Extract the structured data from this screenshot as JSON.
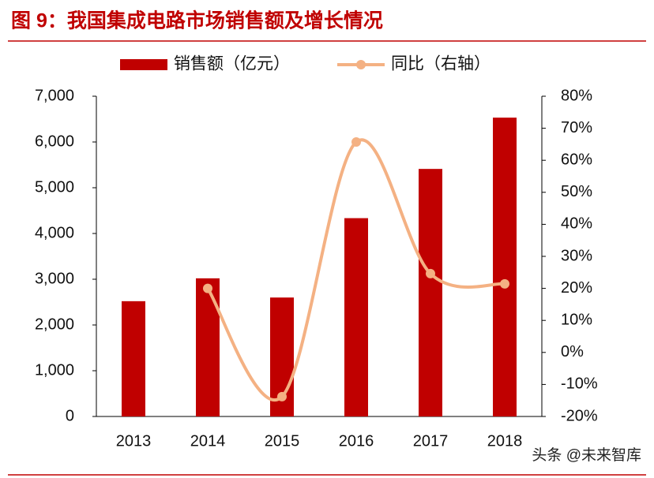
{
  "chart_data": {
    "type": "bar-line",
    "title": "图 9：我国集成电路市场销售额及增长情况",
    "categories": [
      "2013",
      "2014",
      "2015",
      "2016",
      "2017",
      "2018"
    ],
    "series": [
      {
        "name": "销售额（亿元）",
        "type": "bar",
        "color": "#c00000",
        "values": [
          2520,
          3020,
          2600,
          4335,
          5411,
          6532
        ]
      },
      {
        "name": "同比（右轴）",
        "type": "line",
        "axis": "y2",
        "smooth": true,
        "color": "#f4b183",
        "values": [
          null,
          20,
          -13.8,
          65.7,
          24.6,
          21.4
        ]
      }
    ],
    "ylim": [
      0,
      7000
    ],
    "yticks": [
      0,
      {
        "value": 1000,
        "label": "1,000"
      },
      {
        "value": 2000,
        "label": "2,000"
      },
      {
        "value": 3000,
        "label": "3,000"
      },
      {
        "value": 4000,
        "label": "4,000"
      },
      {
        "value": 5000,
        "label": "5,000"
      },
      {
        "value": 6000,
        "label": "6,000"
      },
      {
        "value": 7000,
        "label": "7,000"
      }
    ],
    "y2lim": [
      -20,
      80
    ],
    "y2ticks": [
      {
        "value": -20,
        "label": "-20%"
      },
      {
        "value": -10,
        "label": "-10%"
      },
      {
        "value": 0,
        "label": "0%"
      },
      {
        "value": 10,
        "label": "10%"
      },
      {
        "value": 20,
        "label": "20%"
      },
      {
        "value": 30,
        "label": "30%"
      },
      {
        "value": 40,
        "label": "40%"
      },
      {
        "value": 50,
        "label": "50%"
      },
      {
        "value": 60,
        "label": "60%"
      },
      {
        "value": 70,
        "label": "70%"
      },
      {
        "value": 80,
        "label": "80%"
      }
    ],
    "legend": "top",
    "watermark": "头条 @未来智库"
  }
}
